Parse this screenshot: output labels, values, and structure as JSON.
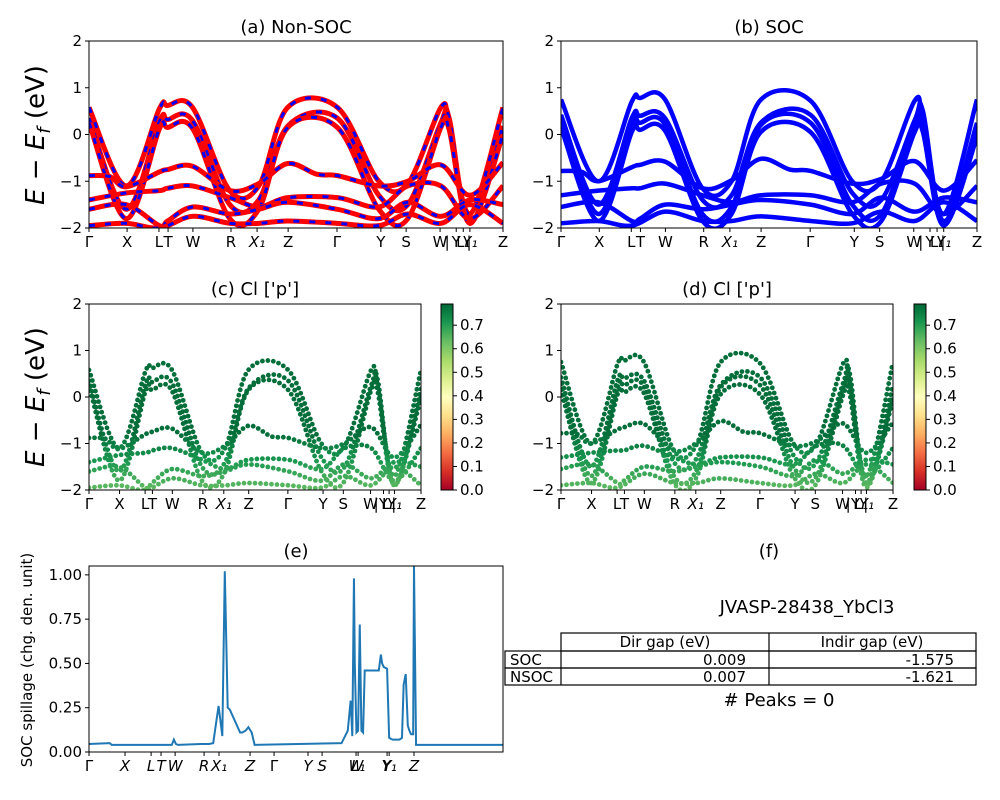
{
  "figure": {
    "material_label": "JVASP-28438_YbCl3",
    "peaks_label": "# Peaks = 0"
  },
  "chart_data": [
    {
      "id": "a",
      "type": "line",
      "title": "(a) Non-SOC",
      "ylabel": "E − E_f (eV)",
      "ylim": [
        -2,
        2
      ],
      "yticks": [
        "2",
        "1",
        "0",
        "−1",
        "−2"
      ],
      "ytick_values": [
        2,
        1,
        0,
        -1,
        -2
      ],
      "kpath_labels": [
        "Γ",
        "X",
        "L",
        "T",
        "W",
        "R",
        "X₁",
        "Z",
        "Γ",
        "Y",
        "S",
        "W",
        "|",
        "Y",
        "L₁",
        "|",
        "Y₁",
        "Z"
      ],
      "kpath_positions": [
        0,
        0.092,
        0.169,
        0.191,
        0.251,
        0.343,
        0.406,
        0.481,
        0.599,
        0.705,
        0.766,
        0.848,
        0.865,
        0.887,
        0.904,
        0.918,
        0.92,
        1.0
      ],
      "series_style": [
        {
          "name": "Non-SOC bands",
          "color": "#ff0000",
          "style": "solid"
        },
        {
          "name": "overlay",
          "color": "#0000ff",
          "style": "dashed"
        }
      ],
      "bands": [
        {
          "x": [
            0,
            0.09,
            0.17,
            0.19,
            0.25,
            0.34,
            0.41,
            0.48,
            0.6,
            0.7,
            0.77,
            0.85,
            0.87,
            0.92,
            1
          ],
          "y": [
            0.58,
            -1.1,
            0.55,
            0.62,
            0.58,
            -1.2,
            -1.1,
            0.58,
            0.58,
            -1.0,
            -1.05,
            0.58,
            0.2,
            -1.7,
            0.58
          ]
        },
        {
          "x": [
            0,
            0.09,
            0.17,
            0.19,
            0.25,
            0.34,
            0.41,
            0.48,
            0.6,
            0.7,
            0.77,
            0.85,
            0.87,
            0.92,
            1
          ],
          "y": [
            0.35,
            -1.6,
            0.28,
            0.32,
            0.3,
            -1.5,
            -1.4,
            0.18,
            0.35,
            -1.3,
            -1.5,
            0.25,
            0.35,
            -1.9,
            0.18
          ]
        },
        {
          "x": [
            0,
            0.09,
            0.17,
            0.19,
            0.25,
            0.34,
            0.41,
            0.48,
            0.6,
            0.7,
            0.77,
            0.85,
            0.87,
            0.92,
            1
          ],
          "y": [
            0.25,
            -1.8,
            0.12,
            0.15,
            0.13,
            -1.8,
            -1.6,
            0.15,
            0.15,
            -1.6,
            -1.8,
            0.15,
            0.1,
            -1.9,
            0.0
          ]
        },
        {
          "x": [
            0,
            0.05,
            0.09,
            0.17,
            0.19,
            0.25,
            0.34,
            0.41,
            0.48,
            0.55,
            0.6,
            0.7,
            0.77,
            0.85,
            0.92,
            1
          ],
          "y": [
            -0.88,
            -0.9,
            -1.12,
            -0.8,
            -0.75,
            -0.68,
            -1.2,
            -1.05,
            -0.62,
            -0.85,
            -0.88,
            -1.1,
            -1.0,
            -0.65,
            -1.3,
            -0.6
          ]
        },
        {
          "x": [
            0,
            0.09,
            0.17,
            0.19,
            0.25,
            0.34,
            0.41,
            0.48,
            0.6,
            0.7,
            0.77,
            0.85,
            0.92,
            1
          ],
          "y": [
            -1.4,
            -1.25,
            -1.2,
            -1.15,
            -1.1,
            -1.35,
            -1.55,
            -1.35,
            -1.35,
            -1.55,
            -1.1,
            -1.1,
            -1.8,
            -1.1
          ]
        },
        {
          "x": [
            0,
            0.09,
            0.17,
            0.19,
            0.25,
            0.34,
            0.41,
            0.48,
            0.6,
            0.7,
            0.77,
            0.85,
            0.92,
            1
          ],
          "y": [
            -1.6,
            -1.5,
            -1.95,
            -1.85,
            -1.55,
            -1.7,
            -1.6,
            -1.45,
            -1.6,
            -1.8,
            -1.45,
            -1.75,
            -1.4,
            -1.5
          ]
        },
        {
          "x": [
            0,
            0.09,
            0.17,
            0.25,
            0.34,
            0.41,
            0.48,
            0.6,
            0.7,
            0.77,
            0.85,
            0.92,
            1
          ],
          "y": [
            -1.95,
            -1.9,
            -2.0,
            -1.75,
            -1.9,
            -1.9,
            -1.85,
            -1.9,
            -1.95,
            -1.7,
            -1.9,
            -1.5,
            -1.9
          ]
        }
      ]
    },
    {
      "id": "b",
      "type": "line",
      "title": "(b) SOC",
      "ylim": [
        -2,
        2
      ],
      "yticks": [
        "2",
        "1",
        "0",
        "−1",
        "−2"
      ],
      "ytick_values": [
        2,
        1,
        0,
        -1,
        -2
      ],
      "kpath_labels": [
        "Γ",
        "X",
        "L",
        "T",
        "W",
        "R",
        "X₁",
        "Z",
        "Γ",
        "Y",
        "S",
        "W",
        "|",
        "Y",
        "L₁",
        "|",
        "Y₁",
        "Z"
      ],
      "series_style": [
        {
          "name": "SOC bands",
          "color": "#0000ff",
          "style": "solid"
        }
      ],
      "bands": [
        {
          "x": [
            0,
            0.09,
            0.17,
            0.19,
            0.25,
            0.34,
            0.41,
            0.48,
            0.6,
            0.7,
            0.77,
            0.85,
            0.87,
            0.92,
            1
          ],
          "y": [
            0.75,
            -1.0,
            0.7,
            0.78,
            0.75,
            -1.15,
            -1.0,
            0.74,
            0.72,
            -1.0,
            -1.0,
            0.72,
            0.3,
            -1.7,
            0.75
          ]
        },
        {
          "x": [
            0,
            0.09,
            0.17,
            0.19,
            0.25,
            0.34,
            0.41,
            0.48,
            0.6,
            0.7,
            0.77,
            0.85,
            0.87,
            0.92,
            1
          ],
          "y": [
            0.42,
            -1.5,
            0.35,
            0.4,
            0.35,
            -1.4,
            -1.3,
            0.25,
            0.42,
            -1.25,
            -1.4,
            0.3,
            0.5,
            -1.85,
            0.25
          ]
        },
        {
          "x": [
            0,
            0.09,
            0.17,
            0.19,
            0.25,
            0.34,
            0.41,
            0.48,
            0.6,
            0.7,
            0.77,
            0.85,
            0.87,
            0.92,
            1
          ],
          "y": [
            0.28,
            -1.7,
            0.2,
            0.25,
            0.22,
            -1.7,
            -1.55,
            0.2,
            0.25,
            -1.5,
            -1.7,
            0.2,
            0.2,
            -1.9,
            0.05
          ]
        },
        {
          "x": [
            0,
            0.09,
            0.17,
            0.19,
            0.25,
            0.34,
            0.41,
            0.48,
            0.6,
            0.7,
            0.77,
            0.85,
            0.87,
            0.92,
            1
          ],
          "y": [
            0.15,
            -1.85,
            0.05,
            0.1,
            0.08,
            -1.85,
            -1.7,
            0.05,
            0.05,
            -1.7,
            -1.85,
            0.05,
            0.05,
            -1.95,
            -0.05
          ]
        },
        {
          "x": [
            0,
            0.05,
            0.09,
            0.17,
            0.19,
            0.25,
            0.34,
            0.41,
            0.48,
            0.55,
            0.6,
            0.7,
            0.77,
            0.85,
            0.92,
            1
          ],
          "y": [
            -0.78,
            -0.8,
            -1.0,
            -0.7,
            -0.65,
            -0.58,
            -1.15,
            -0.98,
            -0.52,
            -0.75,
            -0.78,
            -1.05,
            -0.95,
            -0.57,
            -1.2,
            -0.55
          ]
        },
        {
          "x": [
            0,
            0.09,
            0.17,
            0.19,
            0.25,
            0.34,
            0.41,
            0.48,
            0.6,
            0.7,
            0.77,
            0.85,
            0.92,
            1
          ],
          "y": [
            -1.3,
            -1.2,
            -1.15,
            -1.15,
            -1.05,
            -1.3,
            -1.45,
            -1.3,
            -1.3,
            -1.45,
            -1.05,
            -1.05,
            -1.7,
            -1.1
          ]
        },
        {
          "x": [
            0,
            0.09,
            0.17,
            0.19,
            0.25,
            0.34,
            0.41,
            0.48,
            0.6,
            0.7,
            0.77,
            0.85,
            0.92,
            1
          ],
          "y": [
            -1.55,
            -1.45,
            -1.85,
            -1.8,
            -1.5,
            -1.6,
            -1.5,
            -1.4,
            -1.5,
            -1.7,
            -1.35,
            -1.65,
            -1.35,
            -1.45
          ]
        },
        {
          "x": [
            0,
            0.09,
            0.17,
            0.25,
            0.34,
            0.41,
            0.48,
            0.6,
            0.7,
            0.77,
            0.85,
            0.92,
            1
          ],
          "y": [
            -1.9,
            -1.85,
            -1.95,
            -1.65,
            -1.85,
            -1.85,
            -1.75,
            -1.85,
            -1.9,
            -1.65,
            -1.85,
            -1.45,
            -1.85
          ]
        }
      ]
    },
    {
      "id": "c",
      "type": "scatter",
      "title": "(c)  Cl ['p']",
      "ylabel": "E − E_f (eV)",
      "ylim": [
        -2,
        2
      ],
      "yticks": [
        "2",
        "1",
        "0",
        "−1",
        "−2"
      ],
      "ytick_values": [
        2,
        1,
        0,
        -1,
        -2
      ],
      "kpath_labels": [
        "Γ",
        "X",
        "L",
        "T",
        "W",
        "R",
        "X₁",
        "Z",
        "Γ",
        "Y",
        "S",
        "W",
        "|",
        "Y",
        "L₁",
        "|",
        "Y₁",
        "Z"
      ],
      "colorbar": {
        "cmap": "RdYlGn",
        "range": [
          0.0,
          0.79
        ],
        "ticks": [
          "0.0",
          "0.1",
          "0.2",
          "0.3",
          "0.4",
          "0.5",
          "0.6",
          "0.7"
        ],
        "tick_values": [
          0,
          0.1,
          0.2,
          0.3,
          0.4,
          0.5,
          0.6,
          0.7
        ]
      },
      "based_on": "a"
    },
    {
      "id": "d",
      "type": "scatter",
      "title": "(d) Cl ['p']",
      "ylim": [
        -2,
        2
      ],
      "yticks": [
        "2",
        "1",
        "0",
        "−1",
        "−2"
      ],
      "ytick_values": [
        2,
        1,
        0,
        -1,
        -2
      ],
      "kpath_labels": [
        "Γ",
        "X",
        "L",
        "T",
        "W",
        "R",
        "X₁",
        "Z",
        "Γ",
        "Y",
        "S",
        "W",
        "|",
        "Y",
        "L₁",
        "|",
        "Y₁",
        "Z"
      ],
      "colorbar": {
        "cmap": "RdYlGn",
        "range": [
          0.0,
          0.79
        ],
        "ticks": [
          "0.0",
          "0.1",
          "0.2",
          "0.3",
          "0.4",
          "0.5",
          "0.6",
          "0.7"
        ],
        "tick_values": [
          0,
          0.1,
          0.2,
          0.3,
          0.4,
          0.5,
          0.6,
          0.7
        ]
      },
      "based_on": "b"
    },
    {
      "id": "e",
      "type": "line",
      "title": "(e)",
      "ylabel": "SOC spillage (chg. den. unit)",
      "ylim": [
        0,
        1.05
      ],
      "yticks": [
        "1.00",
        "0.75",
        "0.50",
        "0.25",
        "0.00"
      ],
      "ytick_values": [
        1.0,
        0.75,
        0.5,
        0.25,
        0.0
      ],
      "xlim": [
        0,
        1
      ],
      "kpath_labels": [
        "Γ",
        "X",
        "L",
        "T",
        "W",
        "R",
        "X₁",
        "Z",
        "Γ",
        "Y",
        "S",
        "W",
        "L₁",
        "Y",
        "Y₁",
        "Z"
      ],
      "kpath_positions": [
        0,
        0.087,
        0.15,
        0.174,
        0.208,
        0.278,
        0.314,
        0.389,
        0.447,
        0.529,
        0.563,
        0.645,
        0.65,
        0.72,
        0.725,
        0.785
      ],
      "color": "#1f77b4",
      "x": [
        0,
        0.05,
        0.055,
        0.2,
        0.205,
        0.21,
        0.215,
        0.27,
        0.29,
        0.3,
        0.308,
        0.313,
        0.322,
        0.328,
        0.335,
        0.34,
        0.365,
        0.37,
        0.378,
        0.385,
        0.393,
        0.4,
        0.61,
        0.625,
        0.632,
        0.636,
        0.64,
        0.642,
        0.646,
        0.65,
        0.654,
        0.658,
        0.662,
        0.666,
        0.67,
        0.675,
        0.68,
        0.7,
        0.705,
        0.708,
        0.712,
        0.72,
        0.725,
        0.733,
        0.738,
        0.75,
        0.756,
        0.76,
        0.765,
        0.77,
        0.774,
        0.778,
        0.783,
        0.785,
        0.79,
        1.0
      ],
      "y": [
        0.045,
        0.05,
        0.04,
        0.04,
        0.07,
        0.045,
        0.04,
        0.045,
        0.045,
        0.05,
        0.18,
        0.26,
        0.09,
        1.02,
        0.25,
        0.24,
        0.11,
        0.11,
        0.12,
        0.14,
        0.11,
        0.04,
        0.05,
        0.12,
        0.29,
        0.09,
        0.98,
        0.5,
        0.11,
        0.12,
        0.72,
        0.12,
        0.11,
        0.46,
        0.46,
        0.46,
        0.46,
        0.46,
        0.55,
        0.5,
        0.48,
        0.47,
        0.08,
        0.07,
        0.07,
        0.07,
        0.08,
        0.38,
        0.44,
        0.15,
        0.12,
        0.1,
        0.1,
        1.05,
        0.04,
        0.04
      ]
    },
    {
      "id": "f",
      "type": "table",
      "title": "(f)",
      "subtitle": "JVASP-28438_YbCl3",
      "columns": [
        "",
        "Dir gap (eV)",
        "Indir gap (eV)"
      ],
      "rows": [
        {
          "label": "SOC",
          "dir_gap": "0.009",
          "indir_gap": "-1.575"
        },
        {
          "label": "NSOC",
          "dir_gap": "0.007",
          "indir_gap": "-1.621"
        }
      ],
      "footer": "# Peaks = 0"
    }
  ]
}
